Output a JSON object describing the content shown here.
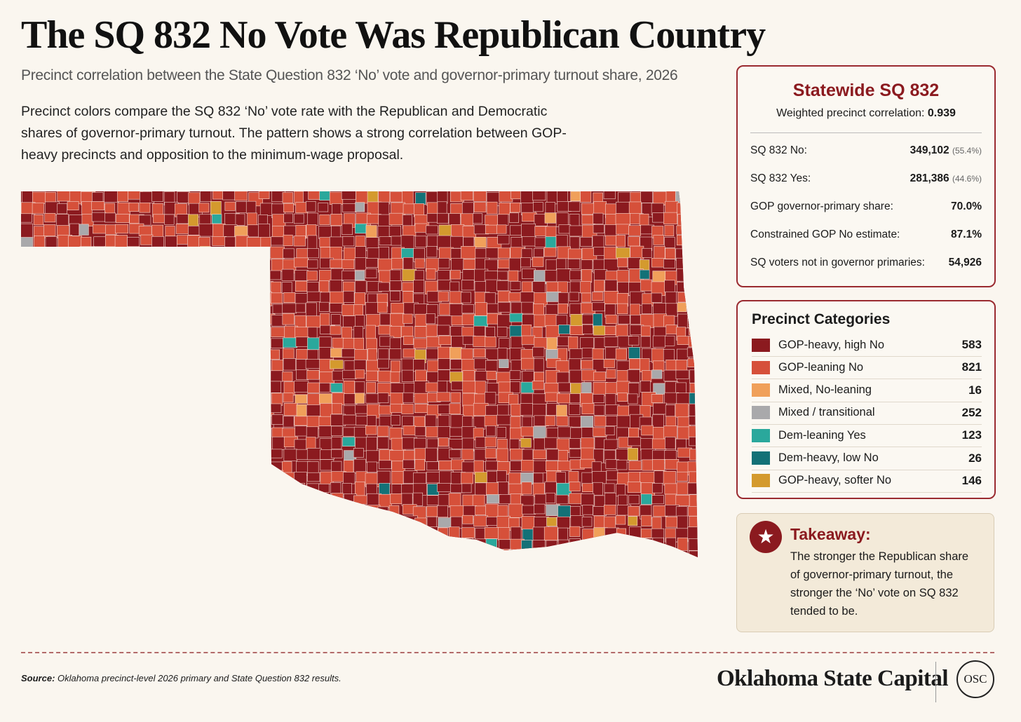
{
  "header": {
    "title": "The SQ 832 No Vote Was Republican Country",
    "subtitle": "Precinct correlation between the State Question 832 ‘No’ vote and governor-primary turnout share, 2026",
    "description": "Precinct colors compare the SQ 832 ‘No’ vote rate with the Republican and Democratic shares of governor-primary turnout. The pattern shows a strong correlation between GOP-heavy precincts and opposition to the minimum-wage proposal."
  },
  "summary": {
    "title": "Statewide SQ 832",
    "correlation_label": "Weighted precinct correlation:",
    "correlation_value": "0.939",
    "rows": [
      {
        "label": "SQ 832 No:",
        "value": "349,102",
        "share": "(55.4%)"
      },
      {
        "label": "SQ 832 Yes:",
        "value": "281,386",
        "share": "(44.6%)"
      },
      {
        "label": "GOP governor-primary share:",
        "value": "70.0%"
      },
      {
        "label": "Constrained GOP No estimate:",
        "value": "87.1%"
      },
      {
        "label": "SQ voters not in governor primaries:",
        "value": "54,926"
      }
    ]
  },
  "legend": {
    "title": "Precinct Categories",
    "items": [
      {
        "label": "GOP-heavy, high No",
        "color": "#8b1a1f",
        "count": 583
      },
      {
        "label": "GOP-leaning No",
        "color": "#d6503a",
        "count": 821
      },
      {
        "label": "Mixed, No-leaning",
        "color": "#f0a05a",
        "count": 16
      },
      {
        "label": "Mixed / transitional",
        "color": "#a9a9ab",
        "count": 252
      },
      {
        "label": "Dem-leaning Yes",
        "color": "#2aa89c",
        "count": 123
      },
      {
        "label": "Dem-heavy, low No",
        "color": "#137177",
        "count": 26
      },
      {
        "label": "GOP-heavy, softer No",
        "color": "#d49a2e",
        "count": 146
      }
    ]
  },
  "takeaway": {
    "title": "Takeaway:",
    "text": "The stronger the Republican share of governor-primary turnout, the stronger the ‘No’ vote on SQ 832 tended to be."
  },
  "footer": {
    "source_label": "Source:",
    "source_text": "Oklahoma precinct-level 2026 primary and State Question 832 results.",
    "brand": "Oklahoma State Capital",
    "logo": "OSC"
  }
}
